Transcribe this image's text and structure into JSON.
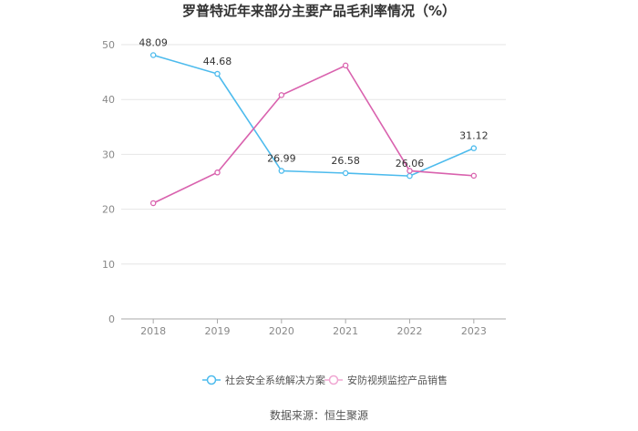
{
  "chart_data": {
    "type": "line",
    "title": "罗普特近年来部分主要产品毛利率情况（%）",
    "xlabel": "",
    "ylabel": "",
    "x": [
      "2018",
      "2019",
      "2020",
      "2021",
      "2022",
      "2023"
    ],
    "ylim": [
      0,
      50
    ],
    "yticks": [
      "0",
      "10",
      "20",
      "30",
      "40",
      "50"
    ],
    "grid": true,
    "legend_position": "bottom",
    "series": [
      {
        "name": "社会安全系统解决方案",
        "color": "#4dbbed",
        "values": [
          48.09,
          44.68,
          26.99,
          26.58,
          26.06,
          31.12
        ],
        "labels": [
          "48.09",
          "44.68",
          "26.99",
          "26.58",
          "26.06",
          "31.12"
        ]
      },
      {
        "name": "安防视频监控产品销售",
        "color": "#d962ae",
        "values": [
          21.1,
          26.7,
          40.8,
          46.2,
          27.0,
          26.1
        ]
      }
    ]
  },
  "source_text": "数据来源：恒生聚源"
}
